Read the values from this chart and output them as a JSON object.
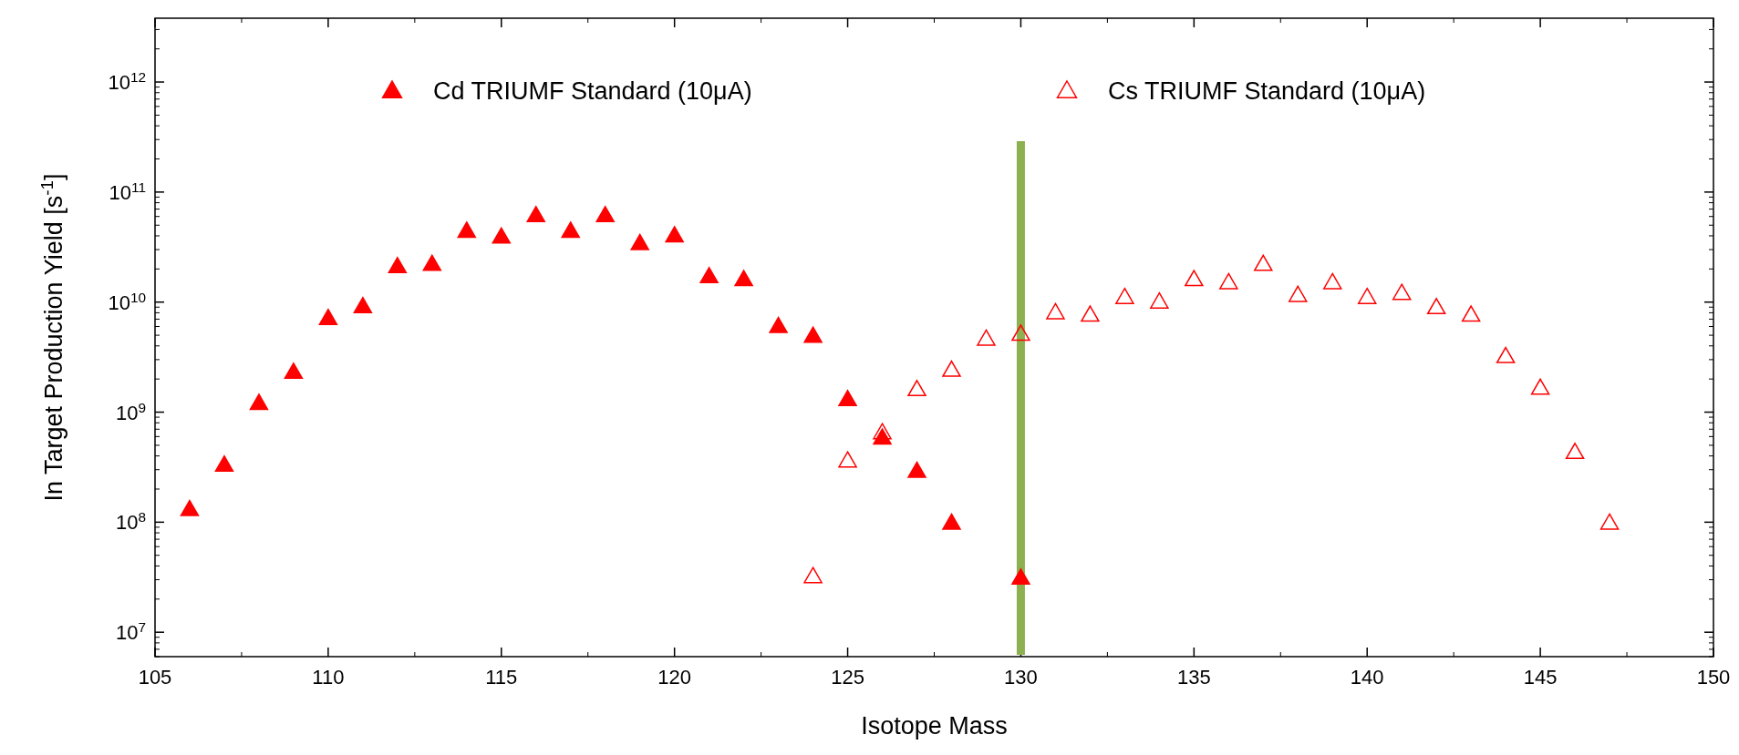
{
  "chart_data": {
    "type": "scatter",
    "xlabel": "Isotope Mass",
    "ylabel": "In Target Production Yield [s$^{-1}$]",
    "log": "y",
    "xlim": [
      105,
      150
    ],
    "xticks": [
      105,
      110,
      115,
      120,
      125,
      130,
      135,
      140,
      145,
      150
    ],
    "ylim": [
      6000000.0,
      3800000000000.0
    ],
    "yticks": [
      {
        "value": 10000000.0,
        "label": "10$^{7}$"
      },
      {
        "value": 100000000.0,
        "label": "10$^{8}$"
      },
      {
        "value": 1000000000.0,
        "label": "10$^{9}$"
      },
      {
        "value": 10000000000.0,
        "label": "10$^{10}$"
      },
      {
        "value": 100000000000.0,
        "label": "10$^{11}$"
      },
      {
        "value": 1000000000000.0,
        "label": "10$^{12}$"
      }
    ],
    "grid": false,
    "legend": "top",
    "marker": "triangle",
    "ref_lines": [
      {
        "axis": "x",
        "value": 130,
        "color": "#8db050"
      }
    ],
    "series": [
      {
        "name": "Cd TRIUMF Standard (10μA)",
        "color": "#ff0000",
        "x": [
          106,
          107,
          108,
          109,
          110,
          111,
          112,
          113,
          114,
          115,
          116,
          117,
          118,
          119,
          120,
          121,
          122,
          123,
          124,
          125,
          126,
          127,
          128,
          130
        ],
        "values": [
          130000000.0,
          330000000.0,
          1200000000.0,
          2300000000.0,
          7100000000.0,
          9100000000.0,
          21000000000.0,
          22000000000.0,
          44000000000.0,
          39000000000.0,
          61000000000.0,
          44000000000.0,
          61000000000.0,
          34000000000.0,
          40000000000.0,
          17000000000.0,
          16000000000.0,
          6000000000.0,
          4900000000.0,
          1300000000.0,
          580000000.0,
          290000000.0,
          98000000.0,
          31000000.0
        ]
      },
      {
        "name": "Cs TRIUMF Standard (10μA)",
        "color": "#ff0000",
        "x": [
          124,
          125,
          126,
          127,
          128,
          129,
          130,
          131,
          132,
          133,
          134,
          135,
          136,
          137,
          138,
          139,
          140,
          141,
          142,
          143,
          144,
          145,
          146,
          147
        ],
        "values": [
          32000000.0,
          360000000.0,
          650000000.0,
          1600000000.0,
          2400000000.0,
          4600000000.0,
          5100000000.0,
          8000000000.0,
          7600000000.0,
          11000000000.0,
          10000000000.0,
          16000000000.0,
          15000000000.0,
          22000000000.0,
          11500000000.0,
          15000000000.0,
          11000000000.0,
          12000000000.0,
          8900000000.0,
          7600000000.0,
          3200000000.0,
          1650000000.0,
          430000000.0,
          98000000.0
        ]
      }
    ]
  }
}
